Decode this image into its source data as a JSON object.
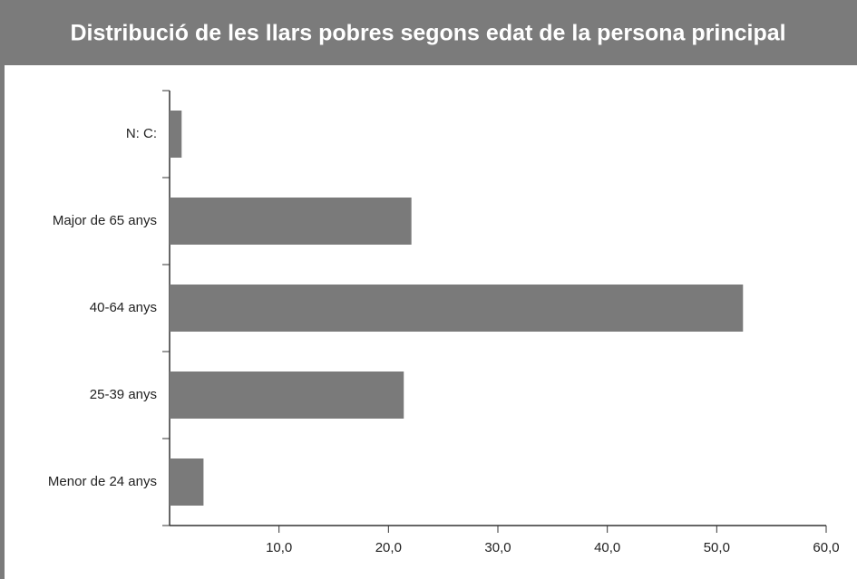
{
  "chart_data": {
    "type": "barh",
    "title": "Distribució de les llars pobres segons edat de la persona principal",
    "categories": [
      "N: C:",
      "Major de 65 anys",
      "40-64 anys",
      "25-39 anys",
      "Menor de 24 anys"
    ],
    "values": [
      1.1,
      22.1,
      52.4,
      21.4,
      3.1
    ],
    "color": "#7a7a7a",
    "xlim": [
      0,
      60
    ],
    "xticks": [
      {
        "value": 10,
        "label": "10,0"
      },
      {
        "value": 20,
        "label": "20,0"
      },
      {
        "value": 30,
        "label": "30,0"
      },
      {
        "value": 40,
        "label": "40,0"
      },
      {
        "value": 50,
        "label": "50,0"
      },
      {
        "value": 60,
        "label": "60,0"
      }
    ],
    "grid": false
  }
}
